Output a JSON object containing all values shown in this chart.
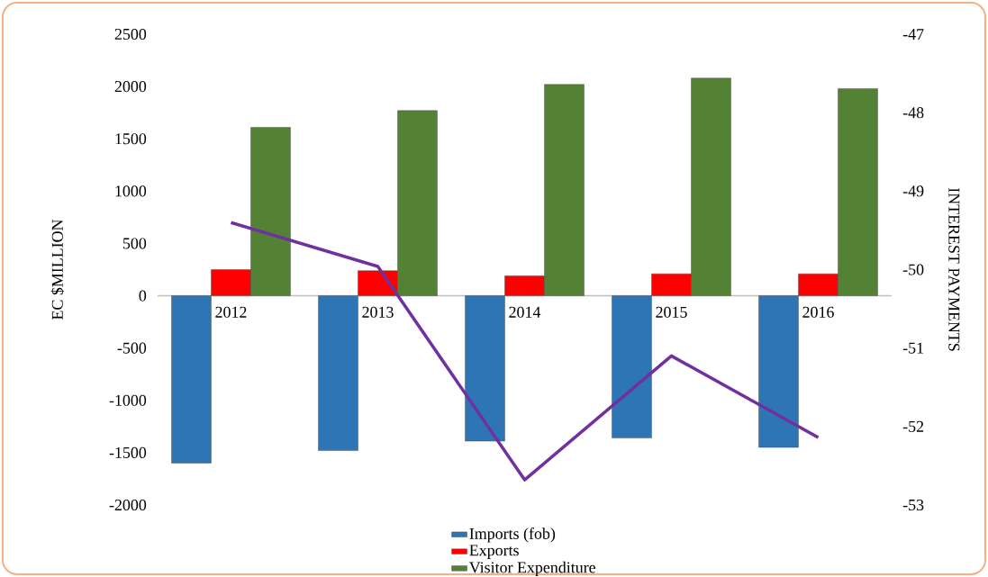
{
  "chart_data": {
    "type": "bar",
    "categories": [
      "2012",
      "2013",
      "2014",
      "2015",
      "2016"
    ],
    "series": [
      {
        "name": "Imports (fob)",
        "color": "#2e75b6",
        "values": [
          -1600,
          -1480,
          -1390,
          -1360,
          -1450
        ]
      },
      {
        "name": "Exports",
        "color": "#ff0000",
        "values": [
          250,
          240,
          190,
          210,
          210
        ]
      },
      {
        "name": "Visitor Expenditure",
        "color": "#548235",
        "values": [
          1610,
          1770,
          2020,
          2080,
          1980
        ]
      },
      {
        "type": "line",
        "axis": "y2",
        "color": "#7030a0",
        "values": [
          -49.4,
          -49.96,
          -52.68,
          -51.1,
          -52.14
        ]
      }
    ],
    "ylabel": "EC $MILLION",
    "y2label": "INTEREST PAYMENTS",
    "ylim": [
      -2000,
      2500
    ],
    "yticks": [
      -2000,
      -1500,
      -1000,
      -500,
      0,
      500,
      1000,
      1500,
      2000,
      2500
    ],
    "y2lim": [
      -53,
      -47
    ],
    "y2ticks": [
      -53,
      -52,
      -51,
      -50,
      -49,
      -48,
      -47
    ],
    "legend": "bottom",
    "grid": false,
    "marker": "none",
    "line_style": "solid"
  }
}
